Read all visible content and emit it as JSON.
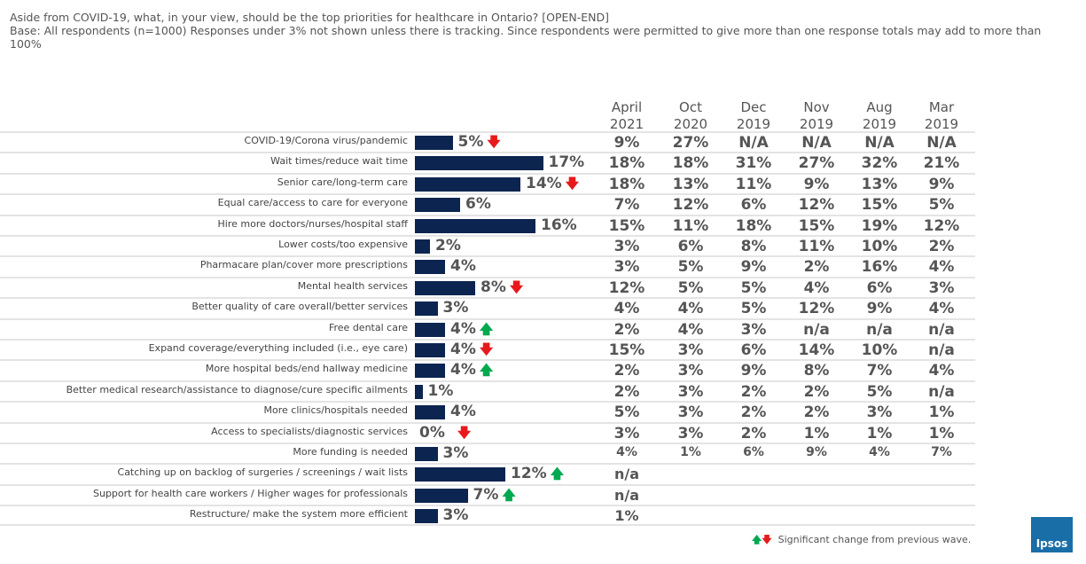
{
  "title": {
    "question": "Aside from COVID-19, what, in your view, should be the top priorities for healthcare in Ontario? [OPEN-END]",
    "base": "Base: All respondents (n=1000)   Responses under 3% not shown unless there is tracking. Since respondents were permitted to give more than one response totals may add to more than 100%"
  },
  "legend": {
    "text": "Significant change from previous wave.",
    "up_color": "#00a84f",
    "down_color": "#e8191b"
  },
  "logo": "Ipsos",
  "chart_data": {
    "type": "bar",
    "orientation": "horizontal",
    "bar_color": "#0c2450",
    "current_wave": "April 2021",
    "columns": [
      [
        "April",
        "2021"
      ],
      [
        "Oct",
        "2020"
      ],
      [
        "Dec",
        "2019"
      ],
      [
        "Nov",
        "2019"
      ],
      [
        "Aug",
        "2019"
      ],
      [
        "Mar",
        "2019"
      ]
    ],
    "rows": [
      {
        "label": "COVID-19/Corona virus/pandemic",
        "value": 5,
        "change": "down",
        "tracking": [
          "9%",
          "27%",
          "N/A",
          "N/A",
          "N/A",
          "N/A"
        ]
      },
      {
        "label": "Wait times/reduce wait time",
        "value": 17,
        "change": "",
        "tracking": [
          "18%",
          "18%",
          "31%",
          "27%",
          "32%",
          "21%"
        ]
      },
      {
        "label": "Senior care/long-term care",
        "value": 14,
        "change": "down",
        "tracking": [
          "18%",
          "13%",
          "11%",
          "9%",
          "13%",
          "9%"
        ]
      },
      {
        "label": "Equal care/access to care for everyone",
        "value": 6,
        "change": "",
        "tracking": [
          "7%",
          "12%",
          "6%",
          "12%",
          "15%",
          "5%"
        ]
      },
      {
        "label": "Hire more doctors/nurses/hospital staff",
        "value": 16,
        "change": "",
        "tracking": [
          "15%",
          "11%",
          "18%",
          "15%",
          "19%",
          "12%"
        ]
      },
      {
        "label": "Lower costs/too expensive",
        "value": 2,
        "change": "",
        "tracking": [
          "3%",
          "6%",
          "8%",
          "11%",
          "10%",
          "2%"
        ]
      },
      {
        "label": "Pharmacare plan/cover more prescriptions",
        "value": 4,
        "change": "",
        "tracking": [
          "3%",
          "5%",
          "9%",
          "2%",
          "16%",
          "4%"
        ]
      },
      {
        "label": "Mental health services",
        "value": 8,
        "change": "down",
        "tracking": [
          "12%",
          "5%",
          "5%",
          "4%",
          "6%",
          "3%"
        ]
      },
      {
        "label": "Better quality of care overall/better services",
        "value": 3,
        "change": "",
        "tracking": [
          "4%",
          "4%",
          "5%",
          "12%",
          "9%",
          "4%"
        ]
      },
      {
        "label": "Free dental care",
        "value": 4,
        "change": "up",
        "tracking": [
          "2%",
          "4%",
          "3%",
          "n/a",
          "n/a",
          "n/a"
        ]
      },
      {
        "label": "Expand coverage/everything included (i.e., eye care)",
        "value": 4,
        "change": "down",
        "tracking": [
          "15%",
          "3%",
          "6%",
          "14%",
          "10%",
          "n/a"
        ]
      },
      {
        "label": "More hospital beds/end hallway medicine",
        "value": 4,
        "change": "up",
        "tracking": [
          "2%",
          "3%",
          "9%",
          "8%",
          "7%",
          "4%"
        ]
      },
      {
        "label": "Better medical research/assistance to diagnose/cure specific ailments",
        "value": 1,
        "change": "",
        "tracking": [
          "2%",
          "3%",
          "2%",
          "2%",
          "5%",
          "n/a"
        ]
      },
      {
        "label": "More clinics/hospitals needed",
        "value": 4,
        "change": "",
        "tracking": [
          "5%",
          "3%",
          "2%",
          "2%",
          "3%",
          "1%"
        ]
      },
      {
        "label": "Access to specialists/diagnostic services",
        "value": 0,
        "change": "down",
        "tracking": [
          "3%",
          "3%",
          "2%",
          "1%",
          "1%",
          "1%"
        ]
      },
      {
        "label": "More funding is needed",
        "value": 3,
        "change": "",
        "tracking": [
          "4%",
          "1%",
          "6%",
          "9%",
          "4%",
          "7%"
        ]
      },
      {
        "label": "Catching up on backlog of surgeries / screenings / wait lists",
        "value": 12,
        "change": "up",
        "tracking": [
          "n/a"
        ]
      },
      {
        "label": "Support for health care workers / Higher wages for professionals",
        "value": 7,
        "change": "up",
        "tracking": [
          "n/a"
        ]
      },
      {
        "label": "Restructure/ make the system more efficient",
        "value": 3,
        "change": "",
        "tracking": [
          "1%"
        ]
      }
    ]
  }
}
